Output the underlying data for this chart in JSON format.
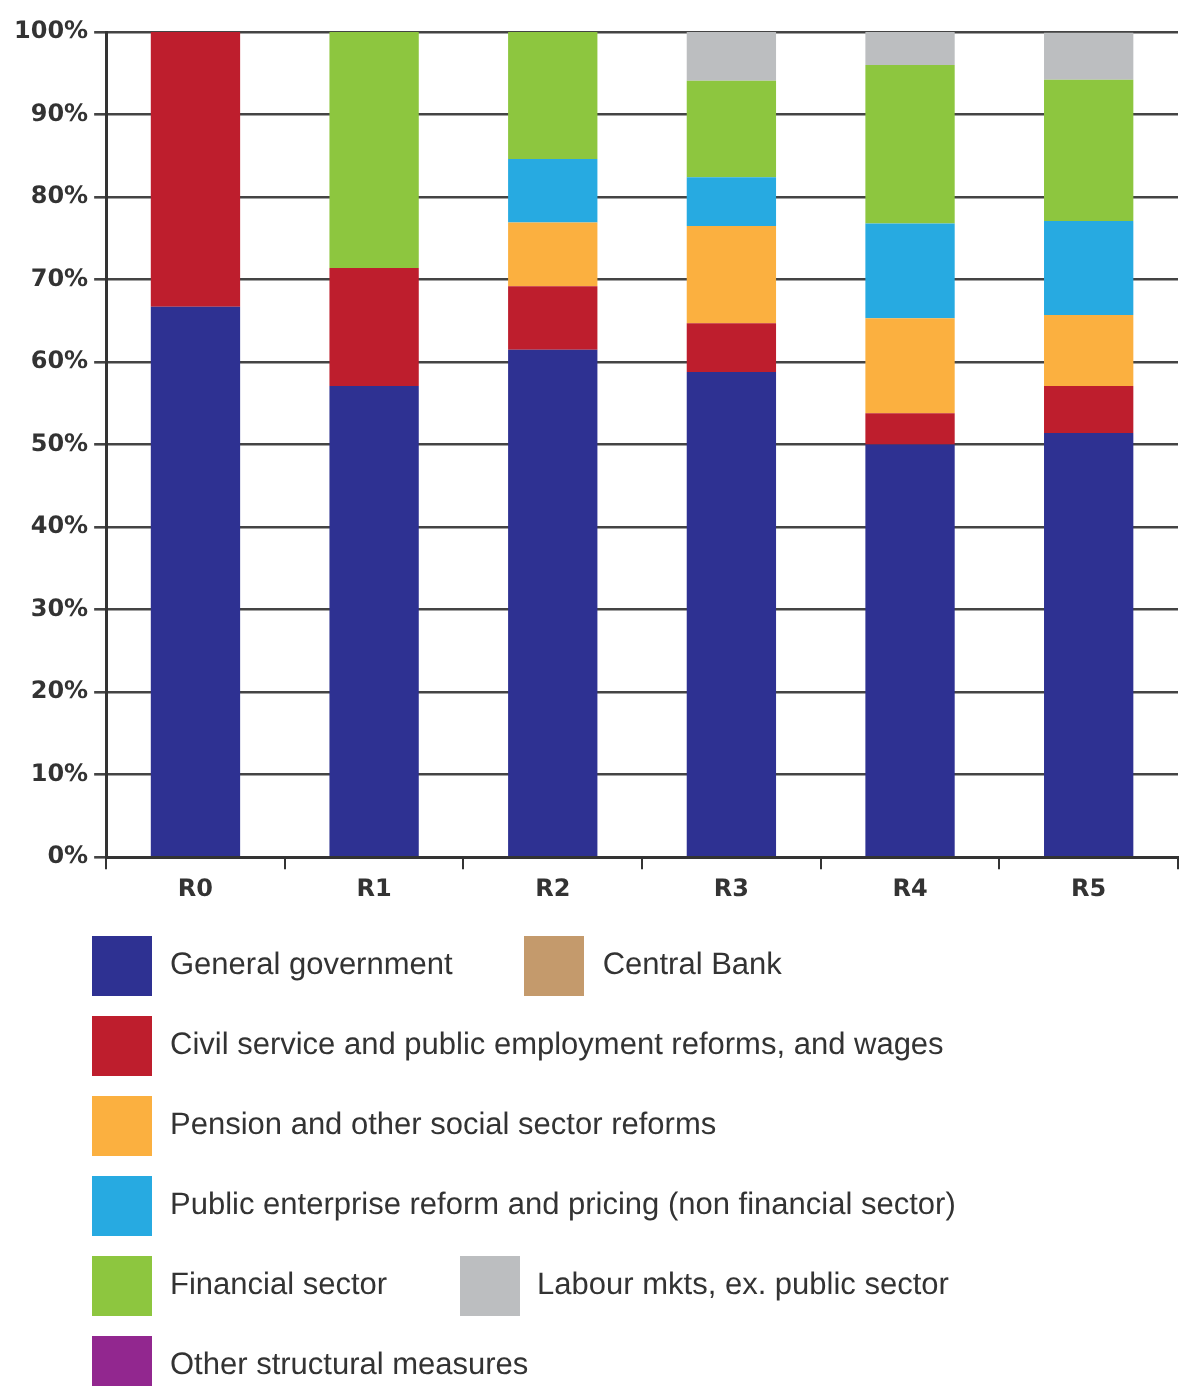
{
  "chart_data": {
    "type": "bar",
    "stacked": true,
    "categories": [
      "R0",
      "R1",
      "R2",
      "R3",
      "R4",
      "R5"
    ],
    "series": [
      {
        "name": "General government",
        "color": "#2e3192",
        "values": [
          66.7,
          57.1,
          61.5,
          58.8,
          50,
          51.4
        ]
      },
      {
        "name": "Central Bank",
        "color": "#c49a6c",
        "values": [
          0,
          0,
          0,
          0,
          0,
          0
        ]
      },
      {
        "name": "Civil service and public employment reforms, and wages",
        "color": "#be1e2d",
        "values": [
          33.3,
          14.3,
          7.7,
          5.9,
          3.8,
          5.7
        ]
      },
      {
        "name": "Pension and other social sector reforms",
        "color": "#fbb040",
        "values": [
          0,
          0,
          7.7,
          11.8,
          11.5,
          8.6
        ]
      },
      {
        "name": "Public enterprise reform and pricing (non financial sector)",
        "color": "#27aae1",
        "values": [
          0,
          0,
          7.7,
          5.9,
          11.5,
          11.4
        ]
      },
      {
        "name": "Financial sector",
        "color": "#8dc63f",
        "values": [
          0,
          28.6,
          15.4,
          11.7,
          19.2,
          17.1
        ]
      },
      {
        "name": "Labour mkts, ex. public sector",
        "color": "#bcbec0",
        "values": [
          0,
          0,
          0,
          5.9,
          4,
          5.7
        ]
      },
      {
        "name": "Other structural measures",
        "color": "#92278f",
        "values": [
          0,
          0,
          0,
          0,
          0,
          0
        ]
      }
    ],
    "ylim": [
      0,
      100
    ],
    "yticks": [
      {
        "value": 0,
        "label": "0%"
      },
      {
        "value": 10,
        "label": "10%"
      },
      {
        "value": 20,
        "label": "20%"
      },
      {
        "value": 30,
        "label": "30%"
      },
      {
        "value": 40,
        "label": "40%"
      },
      {
        "value": 50,
        "label": "50%"
      },
      {
        "value": 60,
        "label": "60%"
      },
      {
        "value": 70,
        "label": "70%"
      },
      {
        "value": 80,
        "label": "80%"
      },
      {
        "value": 90,
        "label": "90%"
      },
      {
        "value": 100,
        "label": "100%"
      }
    ],
    "grid": "y",
    "legend": "bottom"
  }
}
